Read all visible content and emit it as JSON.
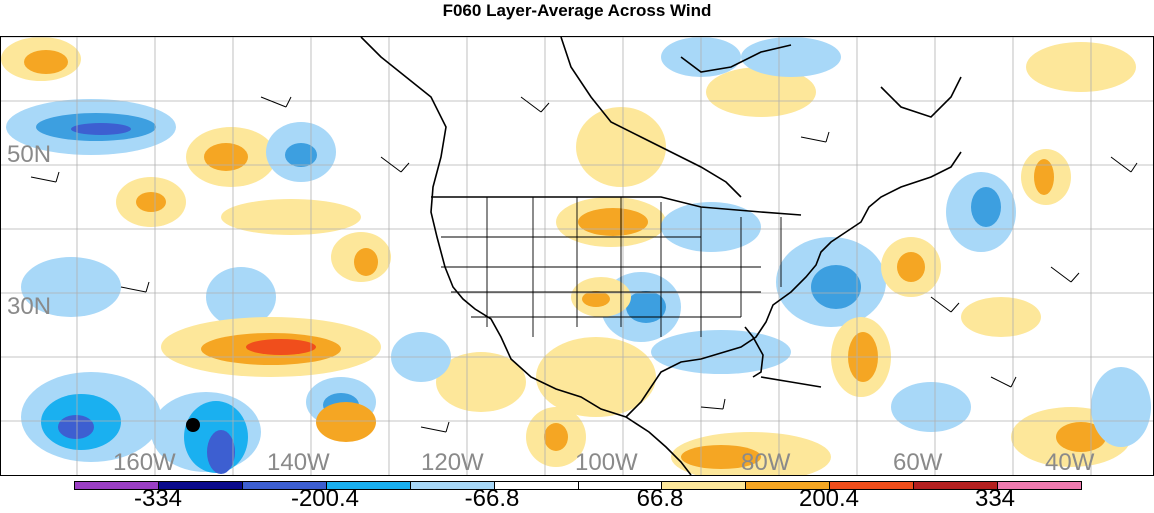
{
  "title": "F060 Layer-Average Across Wind",
  "lat_labels": [
    "50N",
    "30N"
  ],
  "lon_labels": [
    "160W",
    "140W",
    "120W",
    "100W",
    "80W",
    "60W",
    "40W"
  ],
  "colorbar": {
    "colors": [
      "#9b3fc4",
      "#0a0a8c",
      "#3d5fd1",
      "#1ab0f0",
      "#a8d8f8",
      "#ffffff",
      "#ffffff",
      "#fde79a",
      "#f5a623",
      "#f04e1c",
      "#b52020",
      "#f07bb0"
    ],
    "labels": [
      "-334",
      "-200.4",
      "-66.8",
      "66.8",
      "200.4",
      "334"
    ]
  },
  "marker": "storm-center-dot"
}
